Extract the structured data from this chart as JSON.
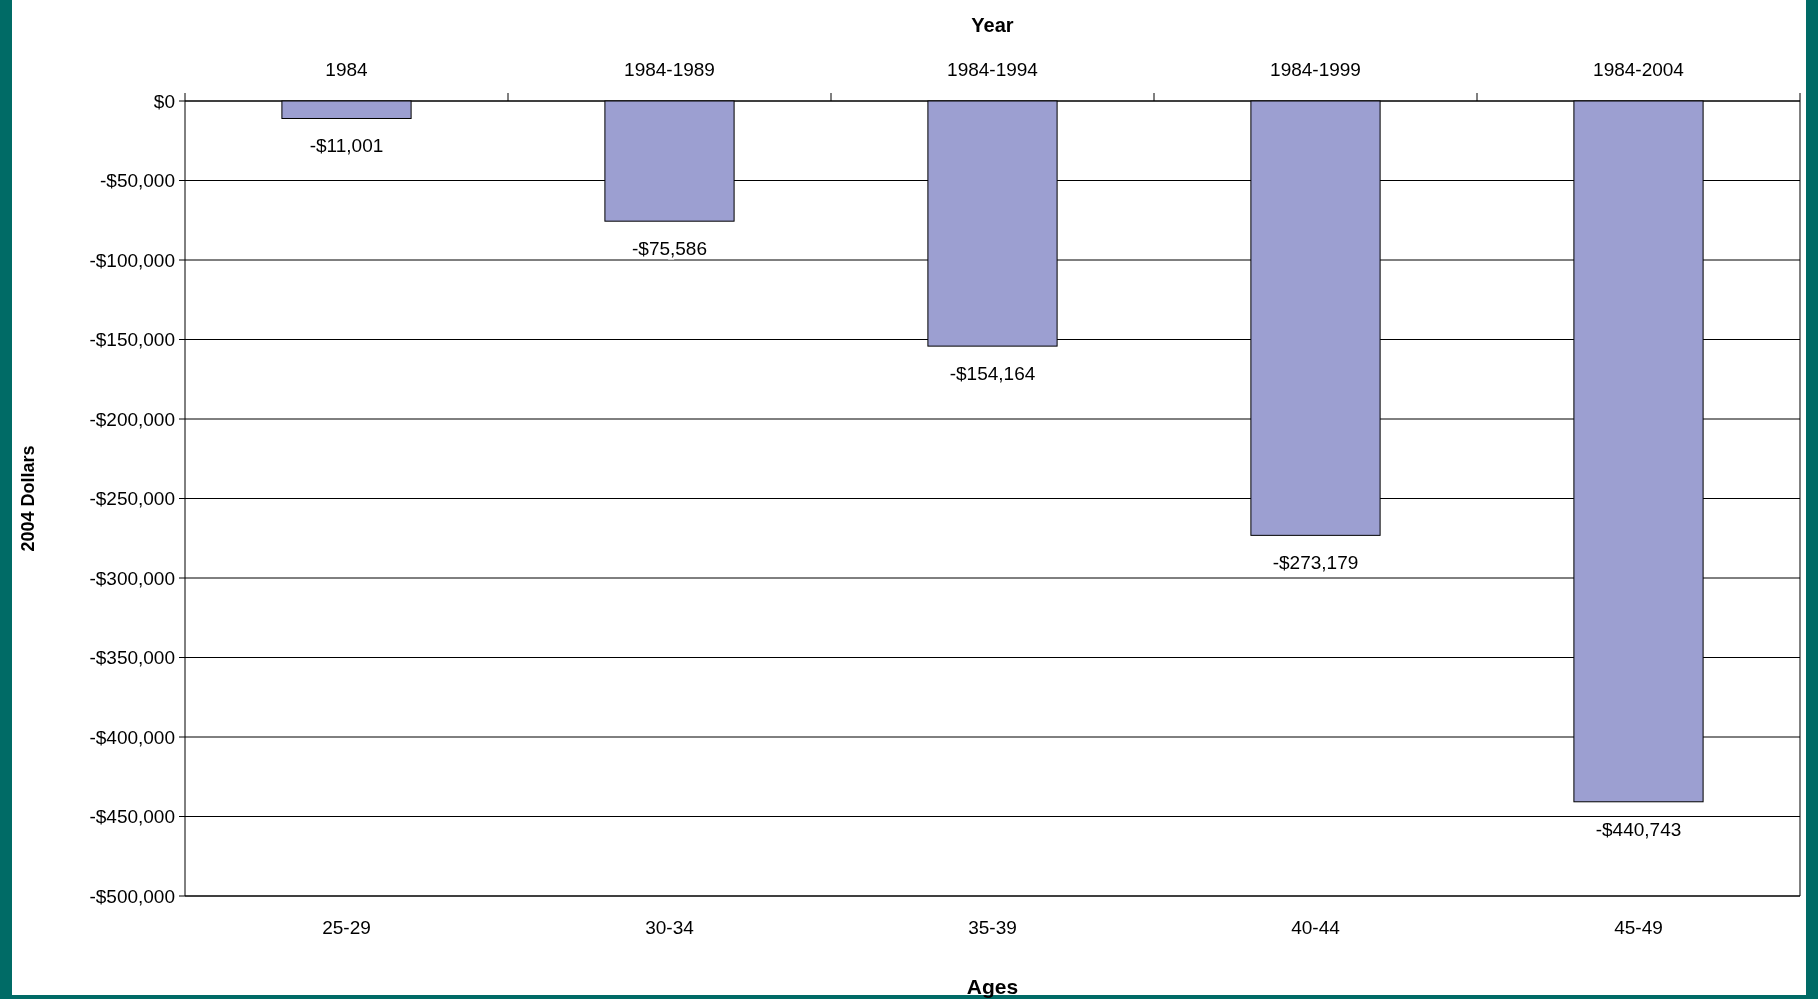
{
  "chart_data": {
    "type": "bar",
    "xlabel": "Ages",
    "ylabel": "2004 Dollars",
    "x2label": "Year",
    "categories": [
      "25-29",
      "30-34",
      "35-39",
      "40-44",
      "45-49"
    ],
    "values": [
      -11001,
      -75586,
      -154164,
      -273179,
      -440743
    ],
    "value_labels": [
      "-$11,001",
      "-$75,586",
      "-$154,164",
      "-$273,179",
      "-$440,743"
    ],
    "color": "#9c9fd1",
    "ylim": [
      -500000,
      0
    ],
    "yticks": [
      {
        "value": 0,
        "label": "$0"
      },
      {
        "value": -50000,
        "label": "-$50,000"
      },
      {
        "value": -100000,
        "label": "-$100,000"
      },
      {
        "value": -150000,
        "label": "-$150,000"
      },
      {
        "value": -200000,
        "label": "-$200,000"
      },
      {
        "value": -250000,
        "label": "-$250,000"
      },
      {
        "value": -300000,
        "label": "-$300,000"
      },
      {
        "value": -350000,
        "label": "-$350,000"
      },
      {
        "value": -400000,
        "label": "-$400,000"
      },
      {
        "value": -450000,
        "label": "-$450,000"
      },
      {
        "value": -500000,
        "label": "-$500,000"
      }
    ],
    "annotations": [
      "1984",
      "1984-1989",
      "1984-1994",
      "1984-1999",
      "1984-2004"
    ],
    "grid": "y"
  }
}
